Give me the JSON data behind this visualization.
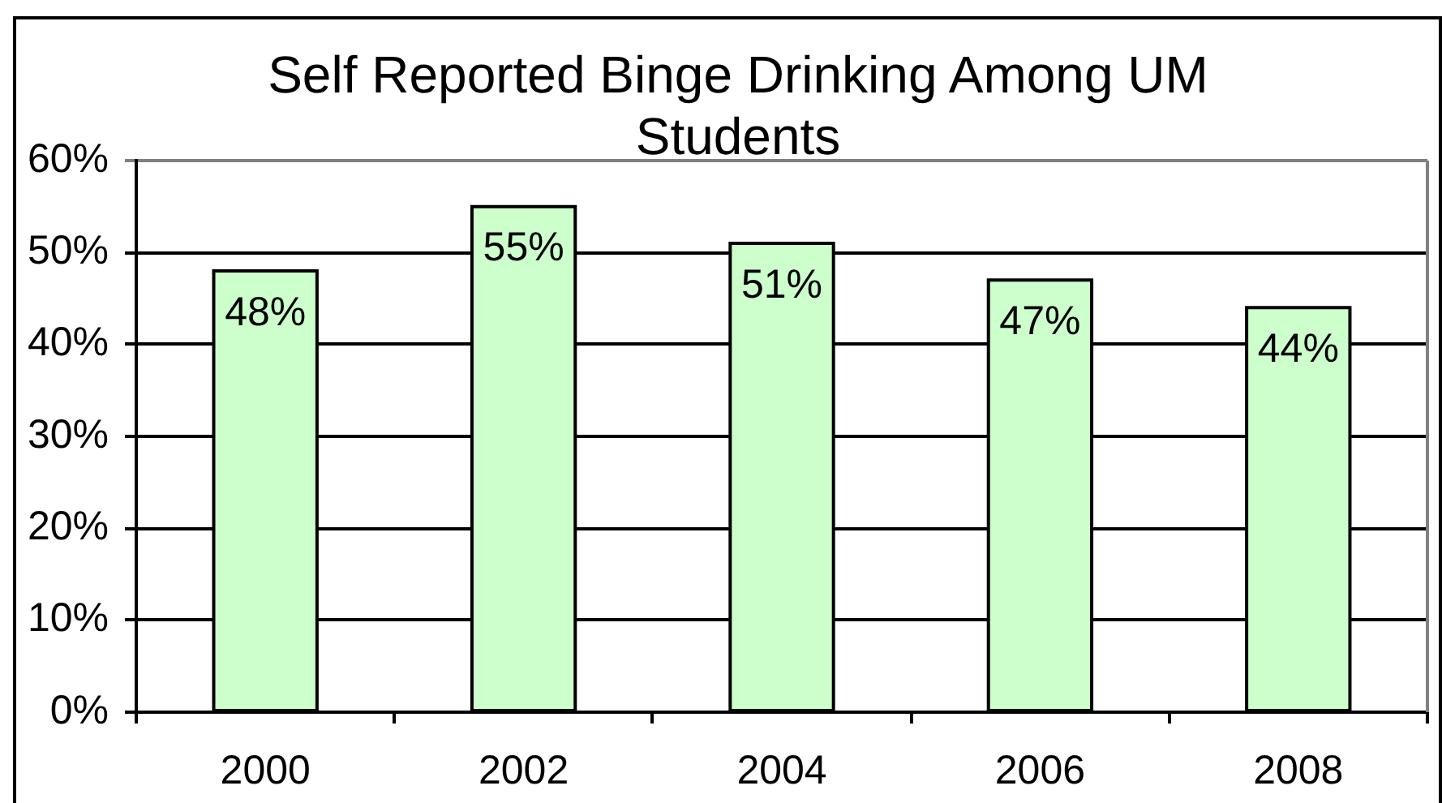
{
  "chart_data": {
    "type": "bar",
    "title": "Self Reported Binge Drinking Among UM Students",
    "categories": [
      "2000",
      "2002",
      "2004",
      "2006",
      "2008"
    ],
    "values": [
      48,
      55,
      51,
      47,
      44
    ],
    "color": "#ccffcc",
    "value_labels": [
      "48%",
      "55%",
      "51%",
      "47%",
      "44%"
    ],
    "ylim": [
      0,
      60
    ],
    "yticks": [
      {
        "value": 0,
        "label": "0%"
      },
      {
        "value": 10,
        "label": "10%"
      },
      {
        "value": 20,
        "label": "20%"
      },
      {
        "value": 30,
        "label": "30%"
      },
      {
        "value": 40,
        "label": "40%"
      },
      {
        "value": 50,
        "label": "50%"
      },
      {
        "value": 60,
        "label": "60%"
      }
    ],
    "grid": "y"
  }
}
